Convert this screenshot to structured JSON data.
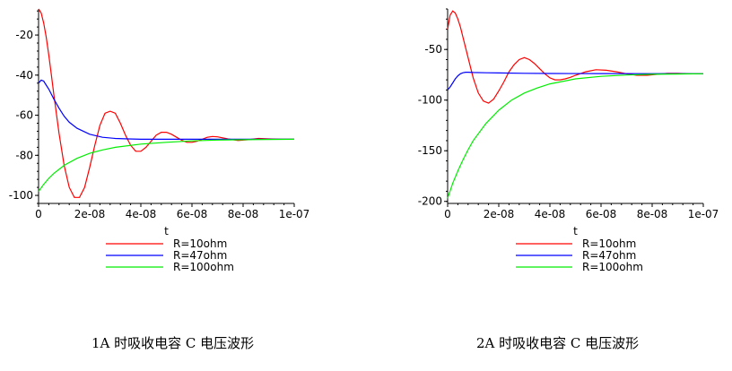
{
  "chart_data": [
    {
      "type": "line",
      "xlabel": "t",
      "ylabel": "",
      "xlim": [
        0,
        1e-07
      ],
      "ylim": [
        -104,
        -7
      ],
      "x_ticks": [
        0,
        2e-08,
        4e-08,
        6e-08,
        8e-08,
        1e-07
      ],
      "x_tick_labels": [
        "0",
        "2e-08",
        "4e-08",
        "6e-08",
        "8e-08",
        "1e-07"
      ],
      "y_ticks": [
        -20,
        -40,
        -60,
        -80,
        -100
      ],
      "y_tick_labels": [
        "-20",
        "-40",
        "-60",
        "-80",
        "-100"
      ],
      "legend_position": "bottom",
      "series": [
        {
          "name": "R=10ohm",
          "color": "#ff0000",
          "x": [
            0,
            1e-09,
            2e-09,
            3e-09,
            4e-09,
            5e-09,
            6e-09,
            8e-09,
            1e-08,
            1.2e-08,
            1.4e-08,
            1.6e-08,
            1.8e-08,
            2e-08,
            2.2e-08,
            2.4e-08,
            2.6e-08,
            2.8e-08,
            3e-08,
            3.2e-08,
            3.4e-08,
            3.6e-08,
            3.8e-08,
            4e-08,
            4.2e-08,
            4.4e-08,
            4.6e-08,
            4.8e-08,
            5e-08,
            5.2e-08,
            5.4e-08,
            5.6e-08,
            5.8e-08,
            6e-08,
            6.2e-08,
            6.4e-08,
            6.6e-08,
            6.8e-08,
            7e-08,
            7.4e-08,
            7.8e-08,
            8.2e-08,
            8.6e-08,
            9e-08,
            9.5e-08,
            1e-07
          ],
          "y": [
            -7,
            -9,
            -14,
            -21,
            -30,
            -40,
            -50,
            -69,
            -85,
            -96,
            -101,
            -101,
            -96,
            -86,
            -75,
            -65,
            -59,
            -58,
            -59,
            -64,
            -70,
            -75,
            -78,
            -78,
            -76,
            -73,
            -70,
            -68.5,
            -68.5,
            -69.5,
            -71,
            -72.5,
            -73.5,
            -73.5,
            -73,
            -72,
            -71,
            -70.6,
            -70.8,
            -71.8,
            -72.6,
            -72.2,
            -71.6,
            -71.8,
            -72,
            -72
          ]
        },
        {
          "name": "R=47ohm",
          "color": "#0000ff",
          "x": [
            0,
            1e-09,
            2e-09,
            3e-09,
            4e-09,
            6e-09,
            8e-09,
            1e-08,
            1.2e-08,
            1.5e-08,
            2e-08,
            2.5e-08,
            3e-08,
            3.5e-08,
            4e-08,
            5e-08,
            6e-08,
            7e-08,
            8e-08,
            9e-08,
            1e-07
          ],
          "y": [
            -44,
            -42.5,
            -43,
            -45,
            -47,
            -52,
            -56.5,
            -60.5,
            -63.5,
            -66.5,
            -69.5,
            -71,
            -71.6,
            -71.8,
            -72,
            -72,
            -72,
            -72,
            -72,
            -72,
            -72
          ]
        },
        {
          "name": "R=100ohm",
          "color": "#00ee00",
          "x": [
            0,
            2e-09,
            4e-09,
            6e-09,
            8e-09,
            1e-08,
            1.5e-08,
            2e-08,
            2.5e-08,
            3e-08,
            4e-08,
            5e-08,
            6e-08,
            7e-08,
            8e-08,
            9e-08,
            1e-07
          ],
          "y": [
            -98,
            -94.5,
            -91.5,
            -89,
            -87,
            -85,
            -81.5,
            -79,
            -77.3,
            -76,
            -74.4,
            -73.5,
            -72.8,
            -72.4,
            -72.2,
            -72.1,
            -72
          ]
        }
      ]
    },
    {
      "type": "line",
      "xlabel": "t",
      "ylabel": "",
      "xlim": [
        0,
        1e-07
      ],
      "ylim": [
        -202,
        -10
      ],
      "x_ticks": [
        0,
        2e-08,
        4e-08,
        6e-08,
        8e-08,
        1e-07
      ],
      "x_tick_labels": [
        "0",
        "2e-08",
        "4e-08",
        "6e-08",
        "8e-08",
        "1e-07"
      ],
      "y_ticks": [
        -50,
        -100,
        -150,
        -200
      ],
      "y_tick_labels": [
        "-50",
        "-100",
        "-150",
        "-200"
      ],
      "legend_position": "bottom",
      "series": [
        {
          "name": "R=10ohm",
          "color": "#ff0000",
          "x": [
            0,
            1e-09,
            2e-09,
            3e-09,
            4e-09,
            5e-09,
            6e-09,
            8e-09,
            1e-08,
            1.2e-08,
            1.4e-08,
            1.6e-08,
            1.8e-08,
            2e-08,
            2.2e-08,
            2.4e-08,
            2.6e-08,
            2.8e-08,
            3e-08,
            3.2e-08,
            3.4e-08,
            3.6e-08,
            3.8e-08,
            4e-08,
            4.2e-08,
            4.4e-08,
            4.6e-08,
            4.8e-08,
            5e-08,
            5.4e-08,
            5.8e-08,
            6.2e-08,
            6.6e-08,
            7e-08,
            7.4e-08,
            7.8e-08,
            8.2e-08,
            8.6e-08,
            9e-08,
            9.5e-08,
            1e-07
          ],
          "y": [
            -30,
            -16,
            -12,
            -14,
            -20,
            -28,
            -38,
            -58,
            -78,
            -93,
            -101,
            -103,
            -99,
            -91,
            -82,
            -72,
            -65,
            -60,
            -58,
            -60,
            -64,
            -69,
            -74,
            -78,
            -80,
            -80,
            -79,
            -77.5,
            -75.5,
            -72,
            -70,
            -70.5,
            -72,
            -74,
            -75.5,
            -75.5,
            -74.5,
            -73.5,
            -73.5,
            -74,
            -74
          ]
        },
        {
          "name": "R=47ohm",
          "color": "#0000ff",
          "x": [
            0,
            1e-09,
            2e-09,
            3e-09,
            4e-09,
            5e-09,
            6e-09,
            7e-09,
            8e-09,
            1e-08,
            1.5e-08,
            2e-08,
            3e-08,
            4e-08,
            6e-08,
            8e-08,
            1e-07
          ],
          "y": [
            -90,
            -87,
            -83,
            -79,
            -76,
            -74,
            -73,
            -72.5,
            -72.5,
            -72.7,
            -73,
            -73.2,
            -73.5,
            -73.7,
            -73.8,
            -73.9,
            -74
          ]
        },
        {
          "name": "R=100ohm",
          "color": "#00ee00",
          "x": [
            0,
            2e-09,
            4e-09,
            6e-09,
            8e-09,
            1e-08,
            1.5e-08,
            2e-08,
            2.5e-08,
            3e-08,
            3.5e-08,
            4e-08,
            5e-08,
            6e-08,
            7e-08,
            8e-08,
            9e-08,
            1e-07
          ],
          "y": [
            -197,
            -182,
            -170,
            -159,
            -149,
            -140,
            -123,
            -110,
            -100,
            -93,
            -88,
            -84,
            -79,
            -76.5,
            -75.2,
            -74.5,
            -74.2,
            -74
          ]
        }
      ]
    }
  ],
  "captions": [
    "1A 时吸收电容 C 电压波形",
    "2A 时吸收电容 C 电压波形"
  ]
}
